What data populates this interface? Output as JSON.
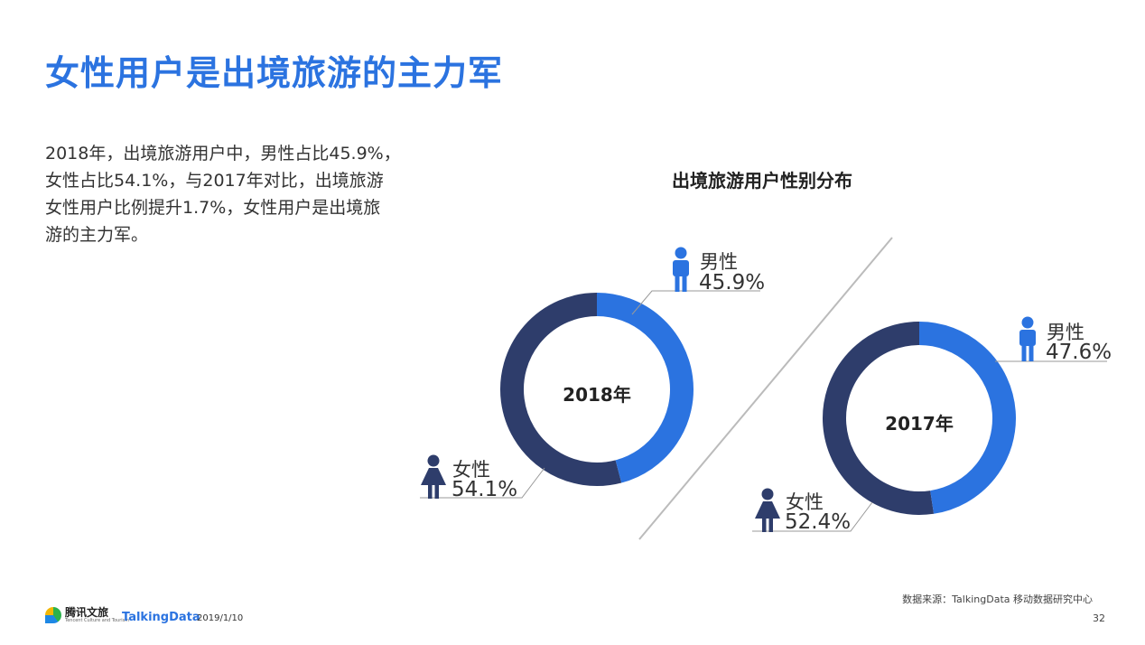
{
  "title": "女性用户是出境旅游的主力军",
  "summary_lines": [
    "2018年，出境旅游用户中，男性占比45.9%，",
    "女性占比54.1%，与2017年对比，出境旅游",
    "女性用户比例提升1.7%，女性用户是出境旅",
    "游的主力军。"
  ],
  "chart_data": {
    "type": "pie",
    "title": "出境旅游用户性别分布",
    "colors": {
      "male": "#2b73e0",
      "female": "#2e3d6b"
    },
    "charts": [
      {
        "center_label": "2018年",
        "male_label": "男性",
        "male_value": 45.9,
        "male_text": "45.9%",
        "female_label": "女性",
        "female_value": 54.1,
        "female_text": "54.1%"
      },
      {
        "center_label": "2017年",
        "male_label": "男性",
        "male_value": 47.6,
        "male_text": "47.6%",
        "female_label": "女性",
        "female_value": 52.4,
        "female_text": "52.4%"
      }
    ]
  },
  "footer": {
    "source": "数据来源：TalkingData 移动数据研究中心",
    "page_number": "32",
    "date": "2019/1/10",
    "logo1": "腾讯文旅",
    "logo1_sub": "Tencent Culture and Tourism",
    "logo2": "TalkingData"
  }
}
